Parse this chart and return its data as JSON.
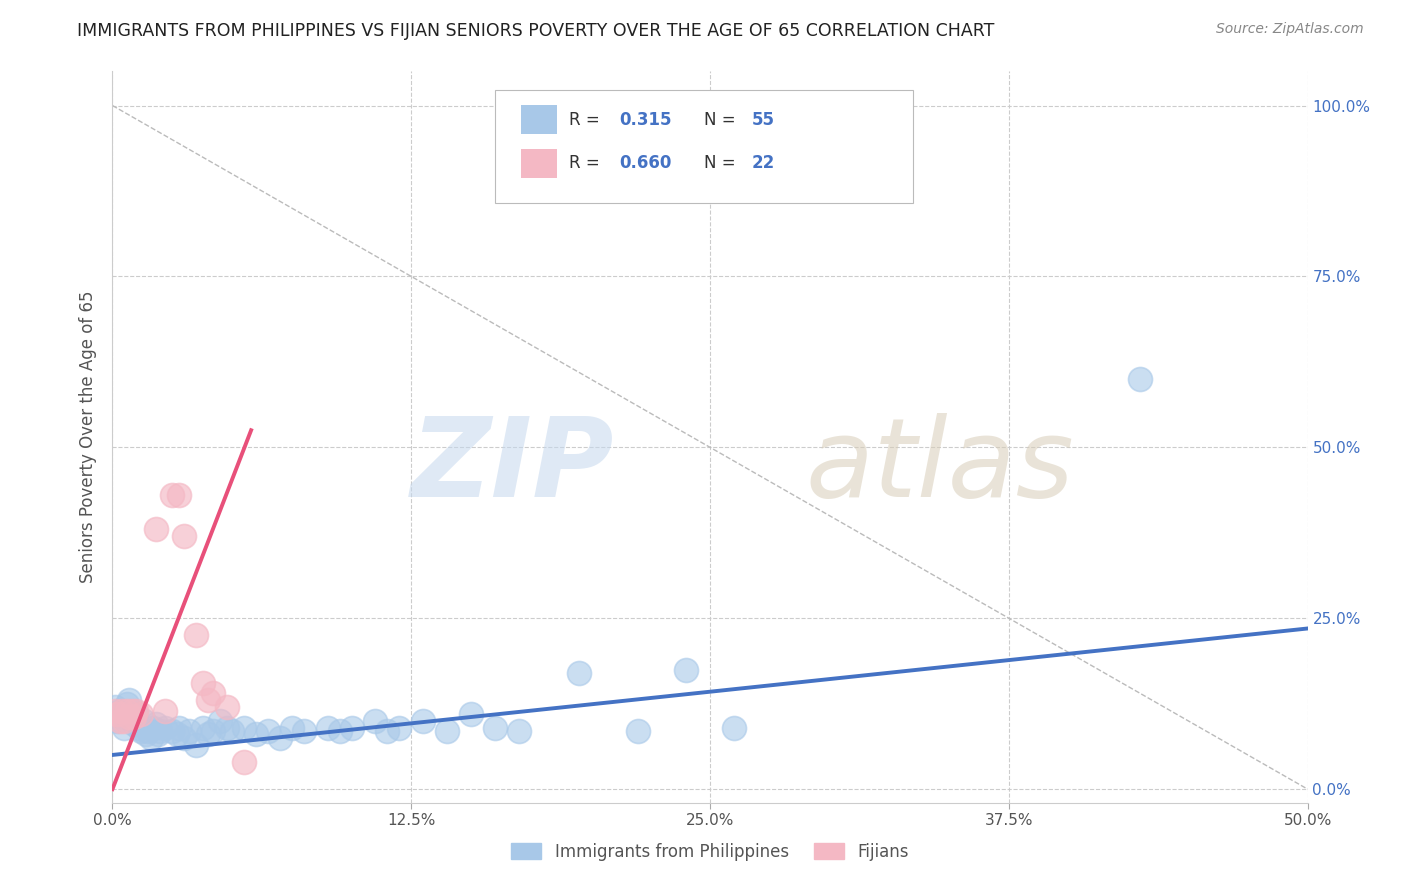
{
  "title": "IMMIGRANTS FROM PHILIPPINES VS FIJIAN SENIORS POVERTY OVER THE AGE OF 65 CORRELATION CHART",
  "source": "Source: ZipAtlas.com",
  "ylabel": "Seniors Poverty Over the Age of 65",
  "xlim": [
    0.0,
    0.5
  ],
  "ylim": [
    -0.02,
    1.05
  ],
  "xtick_labels": [
    "0.0%",
    "12.5%",
    "25.0%",
    "37.5%",
    "50.0%"
  ],
  "xtick_values": [
    0.0,
    0.125,
    0.25,
    0.375,
    0.5
  ],
  "ytick_labels": [
    "0.0%",
    "25.0%",
    "50.0%",
    "75.0%",
    "100.0%"
  ],
  "ytick_values": [
    0.0,
    0.25,
    0.5,
    0.75,
    1.0
  ],
  "blue_R": "0.315",
  "blue_N": "55",
  "pink_R": "0.660",
  "pink_N": "22",
  "blue_color": "#a8c8e8",
  "pink_color": "#f4b8c4",
  "blue_line_color": "#4472c4",
  "pink_line_color": "#e8507a",
  "background_color": "#ffffff",
  "grid_color": "#cccccc",
  "blue_scatter": [
    [
      0.001,
      0.12
    ],
    [
      0.002,
      0.1
    ],
    [
      0.003,
      0.115
    ],
    [
      0.004,
      0.105
    ],
    [
      0.005,
      0.09
    ],
    [
      0.006,
      0.125
    ],
    [
      0.007,
      0.13
    ],
    [
      0.008,
      0.105
    ],
    [
      0.009,
      0.095
    ],
    [
      0.01,
      0.11
    ],
    [
      0.011,
      0.09
    ],
    [
      0.012,
      0.085
    ],
    [
      0.013,
      0.1
    ],
    [
      0.014,
      0.08
    ],
    [
      0.015,
      0.085
    ],
    [
      0.016,
      0.075
    ],
    [
      0.017,
      0.09
    ],
    [
      0.018,
      0.095
    ],
    [
      0.019,
      0.08
    ],
    [
      0.02,
      0.085
    ],
    [
      0.022,
      0.09
    ],
    [
      0.025,
      0.085
    ],
    [
      0.027,
      0.08
    ],
    [
      0.028,
      0.09
    ],
    [
      0.03,
      0.075
    ],
    [
      0.032,
      0.085
    ],
    [
      0.035,
      0.065
    ],
    [
      0.038,
      0.09
    ],
    [
      0.04,
      0.08
    ],
    [
      0.042,
      0.085
    ],
    [
      0.045,
      0.1
    ],
    [
      0.048,
      0.09
    ],
    [
      0.05,
      0.085
    ],
    [
      0.055,
      0.09
    ],
    [
      0.06,
      0.08
    ],
    [
      0.065,
      0.085
    ],
    [
      0.07,
      0.075
    ],
    [
      0.075,
      0.09
    ],
    [
      0.08,
      0.085
    ],
    [
      0.09,
      0.09
    ],
    [
      0.095,
      0.085
    ],
    [
      0.1,
      0.09
    ],
    [
      0.11,
      0.1
    ],
    [
      0.115,
      0.085
    ],
    [
      0.12,
      0.09
    ],
    [
      0.13,
      0.1
    ],
    [
      0.14,
      0.085
    ],
    [
      0.15,
      0.11
    ],
    [
      0.16,
      0.09
    ],
    [
      0.17,
      0.085
    ],
    [
      0.195,
      0.17
    ],
    [
      0.22,
      0.085
    ],
    [
      0.24,
      0.175
    ],
    [
      0.26,
      0.09
    ],
    [
      0.43,
      0.6
    ]
  ],
  "pink_scatter": [
    [
      0.001,
      0.115
    ],
    [
      0.002,
      0.11
    ],
    [
      0.003,
      0.1
    ],
    [
      0.004,
      0.115
    ],
    [
      0.005,
      0.1
    ],
    [
      0.006,
      0.115
    ],
    [
      0.007,
      0.105
    ],
    [
      0.008,
      0.115
    ],
    [
      0.009,
      0.105
    ],
    [
      0.01,
      0.115
    ],
    [
      0.012,
      0.11
    ],
    [
      0.018,
      0.38
    ],
    [
      0.022,
      0.115
    ],
    [
      0.025,
      0.43
    ],
    [
      0.028,
      0.43
    ],
    [
      0.03,
      0.37
    ],
    [
      0.035,
      0.225
    ],
    [
      0.038,
      0.155
    ],
    [
      0.04,
      0.13
    ],
    [
      0.042,
      0.14
    ],
    [
      0.048,
      0.12
    ],
    [
      0.055,
      0.04
    ]
  ],
  "blue_trendline_x": [
    0.0,
    0.5
  ],
  "blue_trendline_y": [
    0.05,
    0.235
  ],
  "pink_trendline_x": [
    0.0,
    0.058
  ],
  "pink_trendline_y": [
    0.0,
    0.525
  ]
}
